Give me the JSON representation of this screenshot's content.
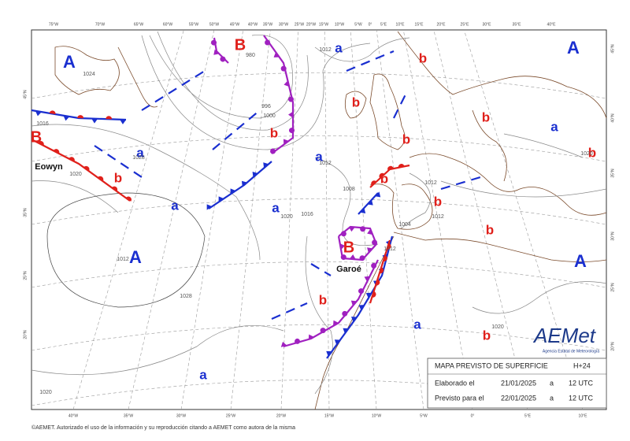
{
  "pressure_centers": [
    "A",
    "A",
    "A",
    "A",
    "a",
    "a",
    "a",
    "a",
    "a",
    "a",
    "a",
    "a",
    "B",
    "B",
    "B",
    "b",
    "b",
    "b",
    "b",
    "b",
    "b",
    "b",
    "b",
    "b",
    "b",
    "b",
    "b"
  ],
  "storm_names": [
    "Eowyn",
    "Garoé"
  ],
  "isobar_labels": [
    "1012",
    "980",
    "1024",
    "996",
    "1000",
    "1016",
    "1012",
    "1020",
    "1028",
    "1020",
    "1016",
    "1008",
    "1012",
    "1012",
    "1004",
    "1012",
    "1028",
    "1020",
    "1020",
    "1020",
    "1012"
  ],
  "longitudes_top": [
    "75°W",
    "70°W",
    "65°W",
    "60°W",
    "55°W",
    "50°W",
    "45°W",
    "40°W",
    "35°W",
    "30°W",
    "25°W",
    "20°W",
    "15°W",
    "10°W",
    "5°W",
    "0°",
    "5°E",
    "10°E",
    "15°E",
    "20°E",
    "25°E",
    "30°E",
    "35°E",
    "40°E"
  ],
  "longitudes_bottom": [
    "40°W",
    "35°W",
    "30°W",
    "25°W",
    "20°W",
    "15°W",
    "10°W",
    "5°W",
    "0°",
    "5°E",
    "10°E"
  ],
  "latitudes_left": [
    "45°N",
    "35°N",
    "25°N",
    "20°N"
  ],
  "latitudes_right": [
    "45°N",
    "40°N",
    "35°N",
    "30°N",
    "25°N",
    "20°N"
  ],
  "logo": {
    "name": "AEMet",
    "subtitle": "Agencia Estatal de Meteorología"
  },
  "info_box": {
    "title": "MAPA PREVISTO DE SUPERFICIE",
    "horizon": "H+24",
    "rows": [
      {
        "label": "Elaborado el",
        "date": "21/01/2025",
        "sep": "a",
        "time": "12 UTC"
      },
      {
        "label": "Previsto para el",
        "date": "22/01/2025",
        "sep": "a",
        "time": "12 UTC"
      }
    ]
  },
  "footer": "©AEMET. Autorizado el uso de la información y su reproducción citando a AEMET como autora de la misma"
}
